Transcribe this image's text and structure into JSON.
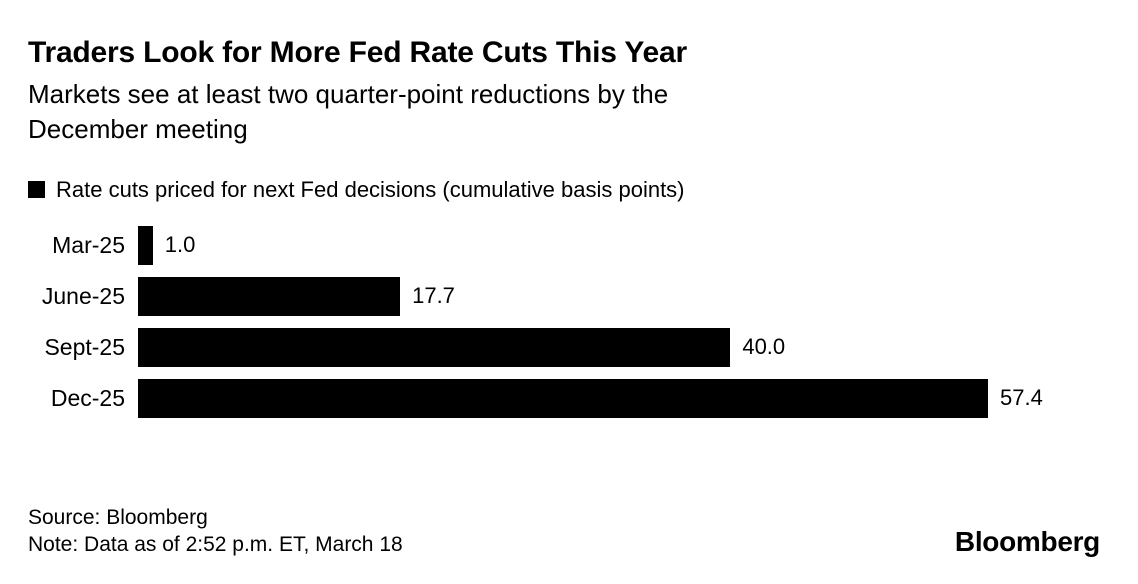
{
  "header": {
    "title": "Traders Look for More Fed Rate Cuts This Year",
    "subtitle_lines": [
      "Markets see at least two quarter-point reductions by the",
      "December meeting"
    ]
  },
  "chart_data": {
    "type": "bar",
    "orientation": "horizontal",
    "title": "Traders Look for More Fed Rate Cuts This Year",
    "subtitle": "Markets see at least two quarter-point reductions by the December meeting",
    "legend": "Rate cuts priced for next Fed decisions (cumulative basis points)",
    "legend_position": "top-left",
    "categories": [
      "Mar-25",
      "June-25",
      "Sept-25",
      "Dec-25"
    ],
    "values": [
      1.0,
      17.7,
      40.0,
      57.4
    ],
    "value_labels": [
      "1.0",
      "17.7",
      "40.0",
      "57.4"
    ],
    "xlim": [
      0,
      57.4
    ],
    "grid": false,
    "bar_color": "#000000"
  },
  "footer": {
    "source": "Source: Bloomberg",
    "note": "Note: Data as of 2:52 p.m. ET, March 18",
    "logo": "Bloomberg"
  },
  "colors": {
    "background": "#ffffff",
    "text": "#000000",
    "bar": "#000000"
  }
}
